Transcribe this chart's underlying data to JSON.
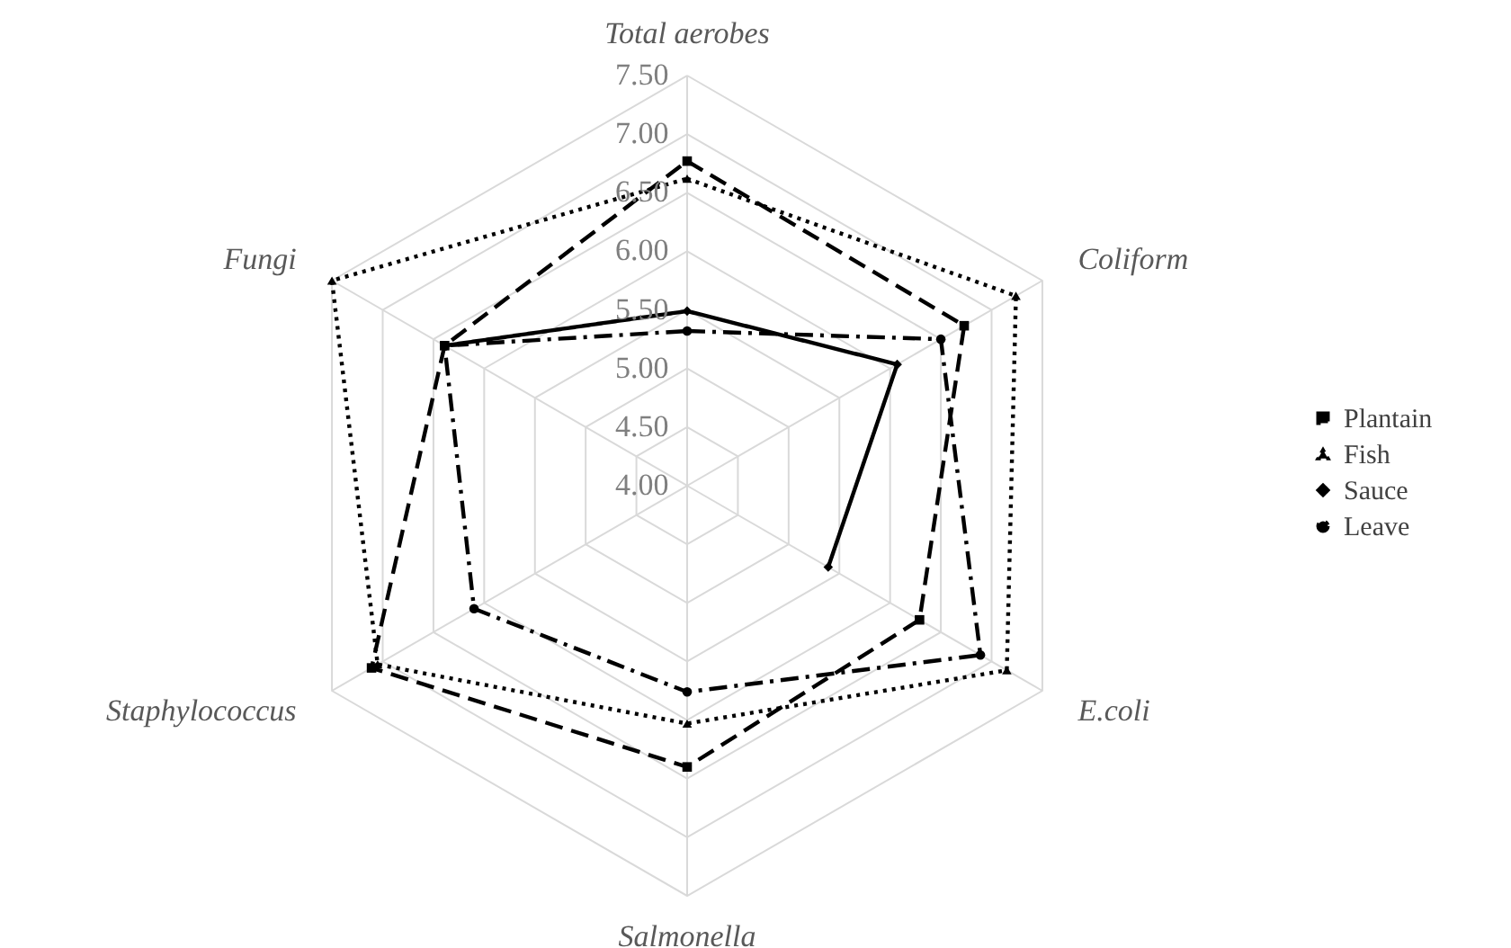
{
  "chart_data": {
    "type": "radar",
    "categories": [
      "Total aerobes",
      "Coliform",
      "E.coli",
      "Salmonella",
      "Staphylococcus",
      "Fungi"
    ],
    "series": [
      {
        "name": "Plantain",
        "color": "#000000",
        "line_style": "dashed",
        "marker": "square",
        "values": [
          6.77,
          6.73,
          6.29,
          6.4,
          7.11,
          6.39
        ]
      },
      {
        "name": "Fish",
        "color": "#000000",
        "line_style": "dotted",
        "marker": "triangle",
        "values": [
          6.62,
          7.24,
          7.15,
          6.03,
          7.05,
          7.5
        ]
      },
      {
        "name": "Sauce",
        "color": "#000000",
        "line_style": "solid",
        "marker": "diamond",
        "values": [
          5.49,
          6.07,
          5.39,
          null,
          null,
          6.39
        ]
      },
      {
        "name": "Leave",
        "color": "#000000",
        "line_style": "dashdot",
        "marker": "circle",
        "values": [
          5.32,
          6.5,
          6.89,
          5.76,
          6.1,
          6.39
        ]
      }
    ],
    "ylim": [
      4,
      7.5
    ],
    "yticks": [
      {
        "value": 4,
        "label": "4.00"
      },
      {
        "value": 4.5,
        "label": "4.50"
      },
      {
        "value": 5,
        "label": "5.00"
      },
      {
        "value": 5.5,
        "label": "5.50"
      },
      {
        "value": 6,
        "label": "6.00"
      },
      {
        "value": 6.5,
        "label": "6.50"
      },
      {
        "value": 7,
        "label": "7.00"
      },
      {
        "value": 7.5,
        "label": "7.50"
      }
    ],
    "grid": true,
    "legend": "right"
  }
}
